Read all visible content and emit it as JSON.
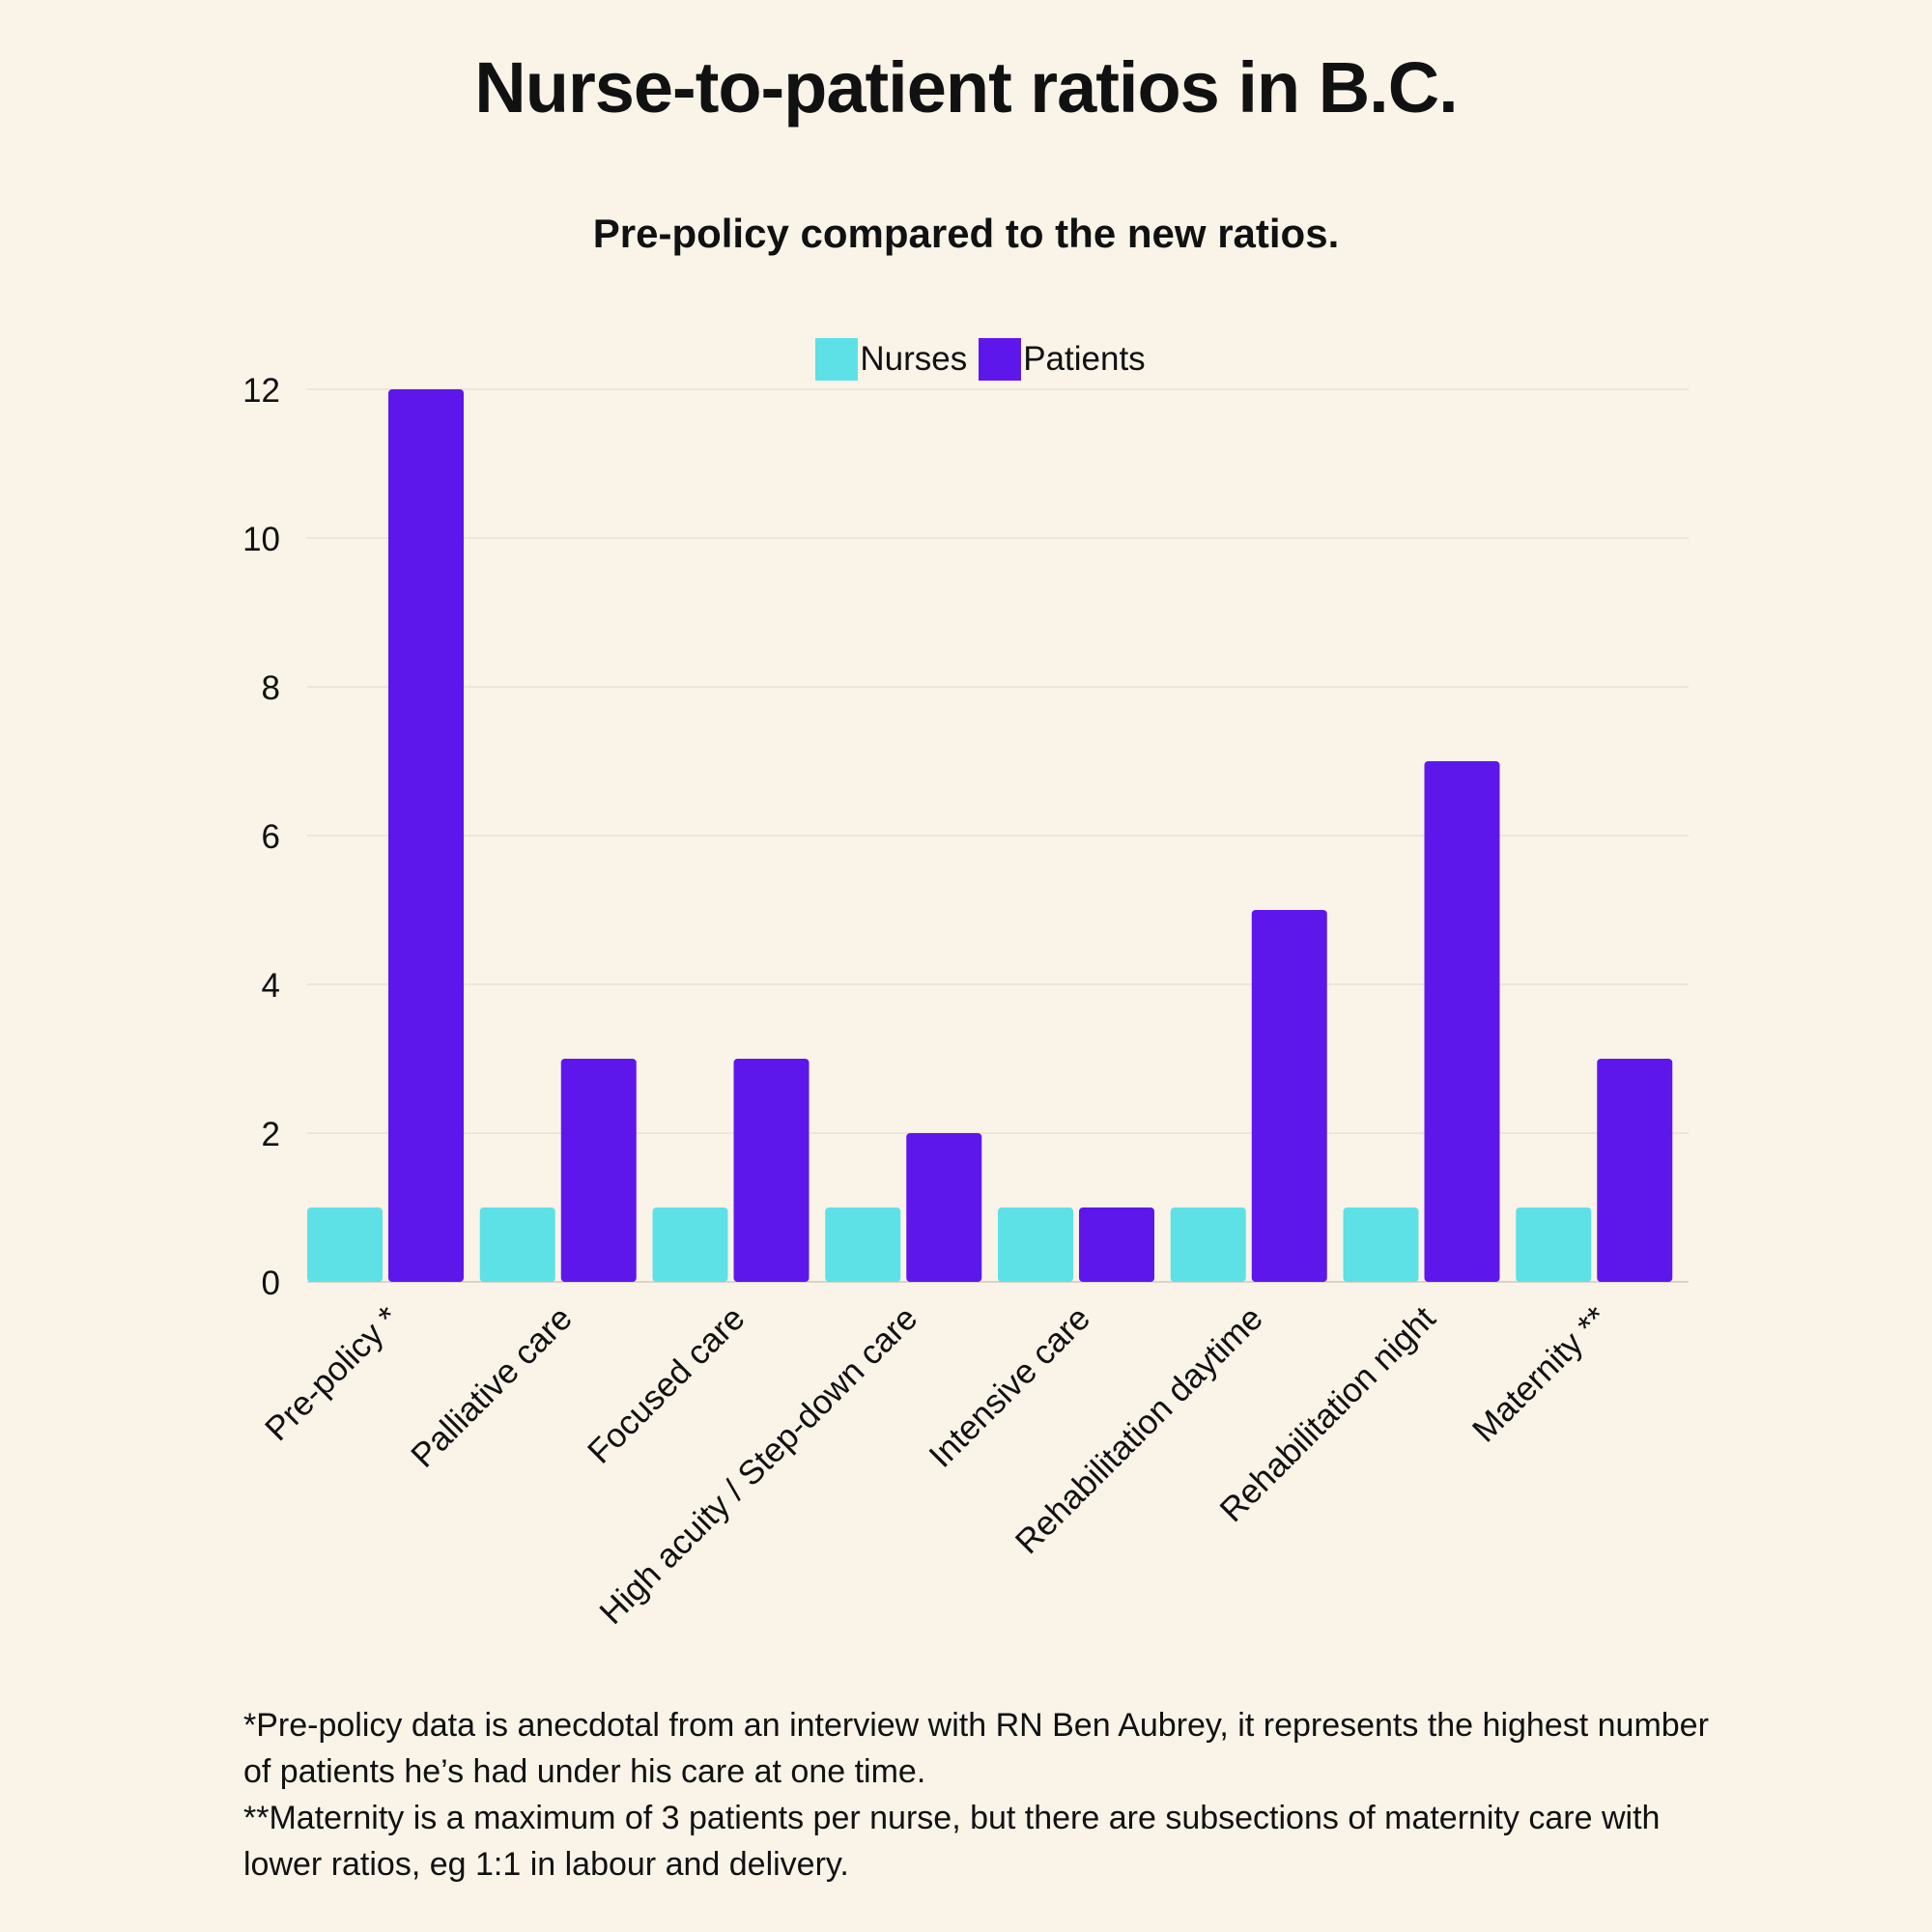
{
  "title": "Nurse-to-patient ratios in B.C.",
  "subtitle": "Pre-policy compared to the new ratios.",
  "footnotes": [
    "*Pre-policy data is anecdotal from an interview with RN Ben Aubrey, it represents the highest number of patients he’s had under his care at one time.",
    "**Maternity is a maximum of 3 patients per nurse, but there are subsections of maternity care with lower ratios, eg 1:1 in labour and delivery."
  ],
  "colors": {
    "background": "#f9f3e8",
    "nurses": "#5ee1e6",
    "patients": "#5e17eb",
    "grid": "#ece6da"
  },
  "chart_data": {
    "type": "bar",
    "categories": [
      "Pre-policy *",
      "Palliative care",
      "Focused care",
      "High acuity / Step-down care",
      "Intensive care",
      "Rehabilitation daytime",
      "Rehabilitation night",
      "Maternity **"
    ],
    "series": [
      {
        "name": "Nurses",
        "values": [
          1,
          1,
          1,
          1,
          1,
          1,
          1,
          1
        ],
        "color": "#5ee1e6"
      },
      {
        "name": "Patients",
        "values": [
          12,
          3,
          3,
          2,
          1,
          5,
          7,
          3
        ],
        "color": "#5e17eb"
      }
    ],
    "title": "Nurse-to-patient ratios in B.C.",
    "subtitle": "Pre-policy compared to the new ratios.",
    "xlabel": "",
    "ylabel": "",
    "ylim": [
      0,
      12
    ],
    "yticks": [
      0,
      2,
      4,
      6,
      8,
      10,
      12
    ],
    "grid": true,
    "legend": "top-center"
  }
}
